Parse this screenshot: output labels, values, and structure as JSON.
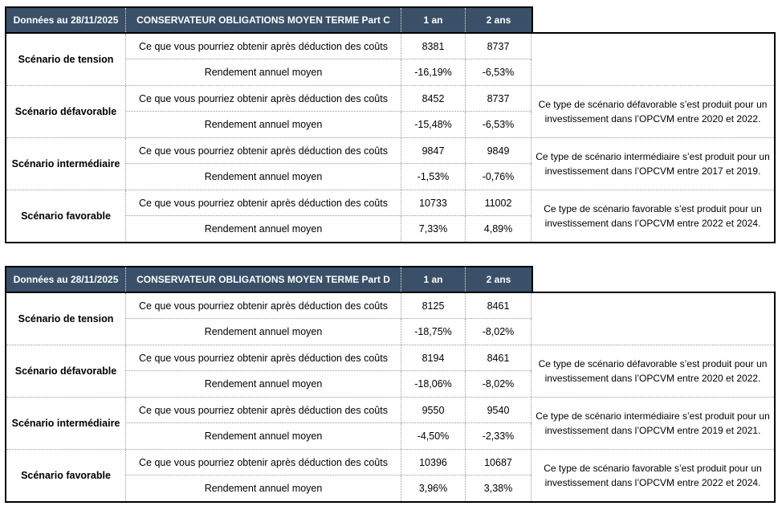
{
  "colors": {
    "header_background": "#3A5068",
    "header_text": "#FFFFFF",
    "outer_border": "#000000",
    "inner_dotted_border": "#9A9A9A",
    "body_background": "#FFFFFF"
  },
  "tables": [
    {
      "date_label": "Données au 28/11/2025",
      "title": "CONSERVATEUR OBLIGATIONS MOYEN TERME Part C",
      "col_1an": "1 an",
      "col_2ans": "2 ans",
      "groups": [
        {
          "label": "Scénario de tension",
          "rows": [
            {
              "desc": "Ce que vous pourriez obtenir après déduction des coûts",
              "v1": "8381",
              "v2": "8737"
            },
            {
              "desc": "Rendement annuel moyen",
              "v1": "-16,19%",
              "v2": "-6,53%"
            }
          ],
          "note": ""
        },
        {
          "label": "Scénario défavorable",
          "rows": [
            {
              "desc": "Ce que vous pourriez obtenir après déduction des coûts",
              "v1": "8452",
              "v2": "8737"
            },
            {
              "desc": "Rendement annuel moyen",
              "v1": "-15,48%",
              "v2": "-6,53%"
            }
          ],
          "note": "Ce type de scénario défavorable s’est produit pour un investissement dans l’OPCVM entre 2020 et 2022."
        },
        {
          "label": "Scénario intermédiaire",
          "rows": [
            {
              "desc": "Ce que vous pourriez obtenir après déduction des coûts",
              "v1": "9847",
              "v2": "9849"
            },
            {
              "desc": "Rendement annuel moyen",
              "v1": "-1,53%",
              "v2": "-0,76%"
            }
          ],
          "note": "Ce type de scénario intermédiaire s’est produit pour un investissement dans l’OPCVM entre 2017 et 2019."
        },
        {
          "label": "Scénario favorable",
          "rows": [
            {
              "desc": "Ce que vous pourriez obtenir après déduction des coûts",
              "v1": "10733",
              "v2": "11002"
            },
            {
              "desc": "Rendement annuel moyen",
              "v1": "7,33%",
              "v2": "4,89%"
            }
          ],
          "note": "Ce type de scénario favorable s’est produit pour un investissement dans l’OPCVM entre 2022 et 2024."
        }
      ]
    },
    {
      "date_label": "Données au 28/11/2025",
      "title": "CONSERVATEUR OBLIGATIONS MOYEN TERME Part D",
      "col_1an": "1 an",
      "col_2ans": "2 ans",
      "groups": [
        {
          "label": "Scénario de tension",
          "rows": [
            {
              "desc": "Ce que vous pourriez obtenir après déduction des coûts",
              "v1": "8125",
              "v2": "8461"
            },
            {
              "desc": "Rendement annuel moyen",
              "v1": "-18,75%",
              "v2": "-8,02%"
            }
          ],
          "note": ""
        },
        {
          "label": "Scénario défavorable",
          "rows": [
            {
              "desc": "Ce que vous pourriez obtenir après déduction des coûts",
              "v1": "8194",
              "v2": "8461"
            },
            {
              "desc": "Rendement annuel moyen",
              "v1": "-18,06%",
              "v2": "-8,02%"
            }
          ],
          "note": "Ce type de scénario défavorable s’est produit pour un investissement dans l’OPCVM entre 2020 et 2022."
        },
        {
          "label": "Scénario intermédiaire",
          "rows": [
            {
              "desc": "Ce que vous pourriez obtenir après déduction des coûts",
              "v1": "9550",
              "v2": "9540"
            },
            {
              "desc": "Rendement annuel moyen",
              "v1": "-4,50%",
              "v2": "-2,33%"
            }
          ],
          "note": "Ce type de scénario intermédiaire s’est produit pour un investissement dans l’OPCVM entre 2019 et 2021."
        },
        {
          "label": "Scénario favorable",
          "rows": [
            {
              "desc": "Ce que vous pourriez obtenir après déduction des coûts",
              "v1": "10396",
              "v2": "10687"
            },
            {
              "desc": "Rendement annuel moyen",
              "v1": "3,96%",
              "v2": "3,38%"
            }
          ],
          "note": "Ce type de scénario favorable s’est produit pour un investissement dans l’OPCVM entre 2022 et 2024."
        }
      ]
    }
  ]
}
